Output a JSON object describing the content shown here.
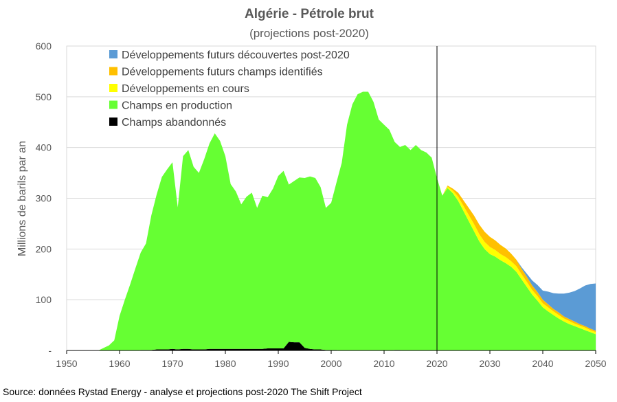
{
  "chart_data": {
    "type": "area",
    "title": "Algérie - Pétrole brut",
    "subtitle": "(projections post-2020)",
    "ylabel": "Millions de barils par an",
    "xlabel": "",
    "xlim": [
      1950,
      2050
    ],
    "ylim": [
      0,
      600
    ],
    "x_ticks": [
      1950,
      1960,
      1970,
      1980,
      1990,
      2000,
      2010,
      2020,
      2030,
      2040,
      2050
    ],
    "y_ticks": [
      0,
      100,
      200,
      300,
      400,
      500,
      600
    ],
    "y_tick_labels": [
      "-",
      "100",
      "200",
      "300",
      "400",
      "500",
      "600"
    ],
    "grid": "horizontal",
    "legend_position": "top-left",
    "vline_x": 2020,
    "colors": {
      "abandoned": "#000000",
      "production": "#66ff33",
      "ongoing": "#ffff00",
      "identified": "#ffc000",
      "future": "#5b9bd5"
    },
    "legend": [
      {
        "key": "future",
        "label": "Développements futurs découvertes post-2020"
      },
      {
        "key": "identified",
        "label": "Développements futurs champs identifiés"
      },
      {
        "key": "ongoing",
        "label": "Développements en cours"
      },
      {
        "key": "production",
        "label": "Champs en production"
      },
      {
        "key": "abandoned",
        "label": "Champs abandonnés"
      }
    ],
    "x": [
      1950,
      1951,
      1952,
      1953,
      1954,
      1955,
      1956,
      1957,
      1958,
      1959,
      1960,
      1961,
      1962,
      1963,
      1964,
      1965,
      1966,
      1967,
      1968,
      1969,
      1970,
      1971,
      1972,
      1973,
      1974,
      1975,
      1976,
      1977,
      1978,
      1979,
      1980,
      1981,
      1982,
      1983,
      1984,
      1985,
      1986,
      1987,
      1988,
      1989,
      1990,
      1991,
      1992,
      1993,
      1994,
      1995,
      1996,
      1997,
      1998,
      1999,
      2000,
      2001,
      2002,
      2003,
      2004,
      2005,
      2006,
      2007,
      2008,
      2009,
      2010,
      2011,
      2012,
      2013,
      2014,
      2015,
      2016,
      2017,
      2018,
      2019,
      2020,
      2021,
      2022,
      2023,
      2024,
      2025,
      2026,
      2027,
      2028,
      2029,
      2030,
      2031,
      2032,
      2033,
      2034,
      2035,
      2036,
      2037,
      2038,
      2039,
      2040,
      2041,
      2042,
      2043,
      2044,
      2045,
      2046,
      2047,
      2048,
      2049,
      2050
    ],
    "series": [
      {
        "key": "abandoned",
        "name": "Champs abandonnés",
        "values": [
          0,
          0,
          0,
          0,
          0,
          0,
          0,
          0,
          0,
          0,
          0,
          0,
          0,
          0,
          1,
          1,
          1,
          2,
          2,
          2,
          3,
          2,
          3,
          3,
          2,
          2,
          2,
          3,
          3,
          3,
          3,
          3,
          3,
          3,
          3,
          3,
          3,
          3,
          4,
          4,
          4,
          4,
          17,
          16,
          16,
          5,
          3,
          2,
          2,
          1,
          1,
          1,
          0,
          0,
          0,
          0,
          0,
          0,
          0,
          0,
          0,
          0,
          1,
          1,
          0,
          0,
          0,
          0,
          0,
          0,
          0,
          0,
          0,
          0,
          0,
          0,
          0,
          0,
          0,
          0,
          0,
          0,
          0,
          0,
          0,
          0,
          0,
          0,
          0,
          0,
          0,
          0,
          0,
          0,
          0,
          0,
          0,
          0,
          0,
          0,
          0
        ]
      },
      {
        "key": "production",
        "name": "Champs en production",
        "values": [
          0,
          0,
          0,
          0,
          0,
          0,
          0,
          5,
          10,
          20,
          68,
          100,
          130,
          162,
          192,
          210,
          265,
          305,
          340,
          355,
          368,
          280,
          380,
          392,
          360,
          348,
          375,
          405,
          425,
          410,
          380,
          325,
          310,
          285,
          300,
          308,
          278,
          302,
          298,
          315,
          340,
          350,
          310,
          318,
          325,
          335,
          340,
          338,
          320,
          280,
          290,
          330,
          370,
          445,
          485,
          505,
          510,
          510,
          490,
          455,
          445,
          435,
          410,
          400,
          405,
          395,
          405,
          395,
          390,
          380,
          340,
          305,
          320,
          310,
          295,
          275,
          255,
          235,
          215,
          200,
          190,
          185,
          178,
          172,
          165,
          155,
          140,
          125,
          110,
          98,
          85,
          77,
          70,
          63,
          57,
          52,
          48,
          44,
          40,
          36,
          32
        ]
      },
      {
        "key": "ongoing",
        "name": "Développements en cours",
        "values": [
          0,
          0,
          0,
          0,
          0,
          0,
          0,
          0,
          0,
          0,
          0,
          0,
          0,
          0,
          0,
          0,
          0,
          0,
          0,
          0,
          0,
          0,
          0,
          0,
          0,
          0,
          0,
          0,
          0,
          0,
          0,
          0,
          0,
          0,
          0,
          0,
          0,
          0,
          0,
          0,
          0,
          0,
          0,
          0,
          0,
          0,
          0,
          0,
          0,
          0,
          0,
          0,
          0,
          0,
          0,
          0,
          0,
          0,
          0,
          0,
          0,
          0,
          0,
          0,
          0,
          0,
          0,
          0,
          0,
          0,
          0,
          0,
          3,
          5,
          8,
          10,
          12,
          14,
          14,
          14,
          14,
          13,
          12,
          12,
          11,
          11,
          10,
          10,
          9,
          9,
          8,
          8,
          7,
          7,
          6,
          6,
          5,
          5,
          5,
          4,
          4
        ]
      },
      {
        "key": "identified",
        "name": "Développements futurs champs identifiés",
        "values": [
          0,
          0,
          0,
          0,
          0,
          0,
          0,
          0,
          0,
          0,
          0,
          0,
          0,
          0,
          0,
          0,
          0,
          0,
          0,
          0,
          0,
          0,
          0,
          0,
          0,
          0,
          0,
          0,
          0,
          0,
          0,
          0,
          0,
          0,
          0,
          0,
          0,
          0,
          0,
          0,
          0,
          0,
          0,
          0,
          0,
          0,
          0,
          0,
          0,
          0,
          0,
          0,
          0,
          0,
          0,
          0,
          0,
          0,
          0,
          0,
          0,
          0,
          0,
          0,
          0,
          0,
          0,
          0,
          0,
          0,
          0,
          0,
          2,
          4,
          8,
          11,
          14,
          17,
          19,
          20,
          20,
          19,
          18,
          17,
          15,
          13,
          11,
          10,
          9,
          8,
          7,
          6,
          5,
          5,
          4,
          4,
          4,
          3,
          3,
          3,
          3
        ]
      },
      {
        "key": "future",
        "name": "Développements futurs découvertes post-2020",
        "values": [
          0,
          0,
          0,
          0,
          0,
          0,
          0,
          0,
          0,
          0,
          0,
          0,
          0,
          0,
          0,
          0,
          0,
          0,
          0,
          0,
          0,
          0,
          0,
          0,
          0,
          0,
          0,
          0,
          0,
          0,
          0,
          0,
          0,
          0,
          0,
          0,
          0,
          0,
          0,
          0,
          0,
          0,
          0,
          0,
          0,
          0,
          0,
          0,
          0,
          0,
          0,
          0,
          0,
          0,
          0,
          0,
          0,
          0,
          0,
          0,
          0,
          0,
          0,
          0,
          0,
          0,
          0,
          0,
          0,
          0,
          0,
          0,
          0,
          0,
          0,
          0,
          0,
          0,
          0,
          0,
          0,
          0,
          0,
          0,
          0,
          0,
          3,
          6,
          10,
          14,
          18,
          25,
          31,
          37,
          45,
          52,
          60,
          70,
          80,
          88,
          93
        ]
      }
    ]
  },
  "source_text": "Source: données Rystad Energy - analyse et projections post-2020  The Shift Project"
}
